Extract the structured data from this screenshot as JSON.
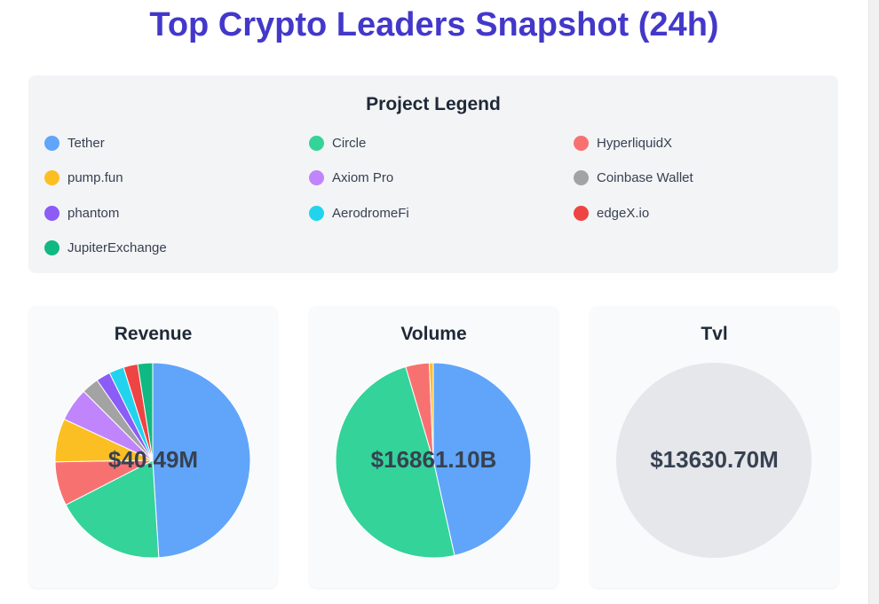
{
  "title": "Top Crypto Leaders Snapshot (24h)",
  "legend": {
    "title": "Project Legend",
    "items": [
      {
        "label": "Tether",
        "color": "#60a5fa"
      },
      {
        "label": "Circle",
        "color": "#34d399"
      },
      {
        "label": "HyperliquidX",
        "color": "#f87171"
      },
      {
        "label": "pump.fun",
        "color": "#fbbf24"
      },
      {
        "label": "Axiom Pro",
        "color": "#c084fc"
      },
      {
        "label": "Coinbase Wallet",
        "color": "#a3a3a3"
      },
      {
        "label": "phantom",
        "color": "#8b5cf6"
      },
      {
        "label": "AerodromeFi",
        "color": "#22d3ee"
      },
      {
        "label": "edgeX.io",
        "color": "#ef4444"
      },
      {
        "label": "JupiterExchange",
        "color": "#10b981"
      }
    ]
  },
  "chart_data": [
    {
      "type": "pie",
      "title": "Revenue",
      "center_label": "$40.49M",
      "categories": [
        "Tether",
        "Circle",
        "HyperliquidX",
        "pump.fun",
        "Axiom Pro",
        "Coinbase Wallet",
        "phantom",
        "AerodromeFi",
        "edgeX.io",
        "JupiterExchange"
      ],
      "values": [
        19.8,
        7.45,
        2.95,
        2.9,
        2.25,
        1.15,
        0.95,
        1.0,
        0.95,
        1.0
      ]
    },
    {
      "type": "pie",
      "title": "Volume",
      "center_label": "$16861.10B",
      "categories": [
        "Tether",
        "Circle",
        "HyperliquidX",
        "pump.fun"
      ],
      "values": [
        7840,
        8250,
        660,
        110
      ]
    },
    {
      "type": "pie",
      "title": "Tvl",
      "center_label": "$13630.70M",
      "categories": [],
      "values": [],
      "empty_color": "#e5e7eb"
    }
  ]
}
